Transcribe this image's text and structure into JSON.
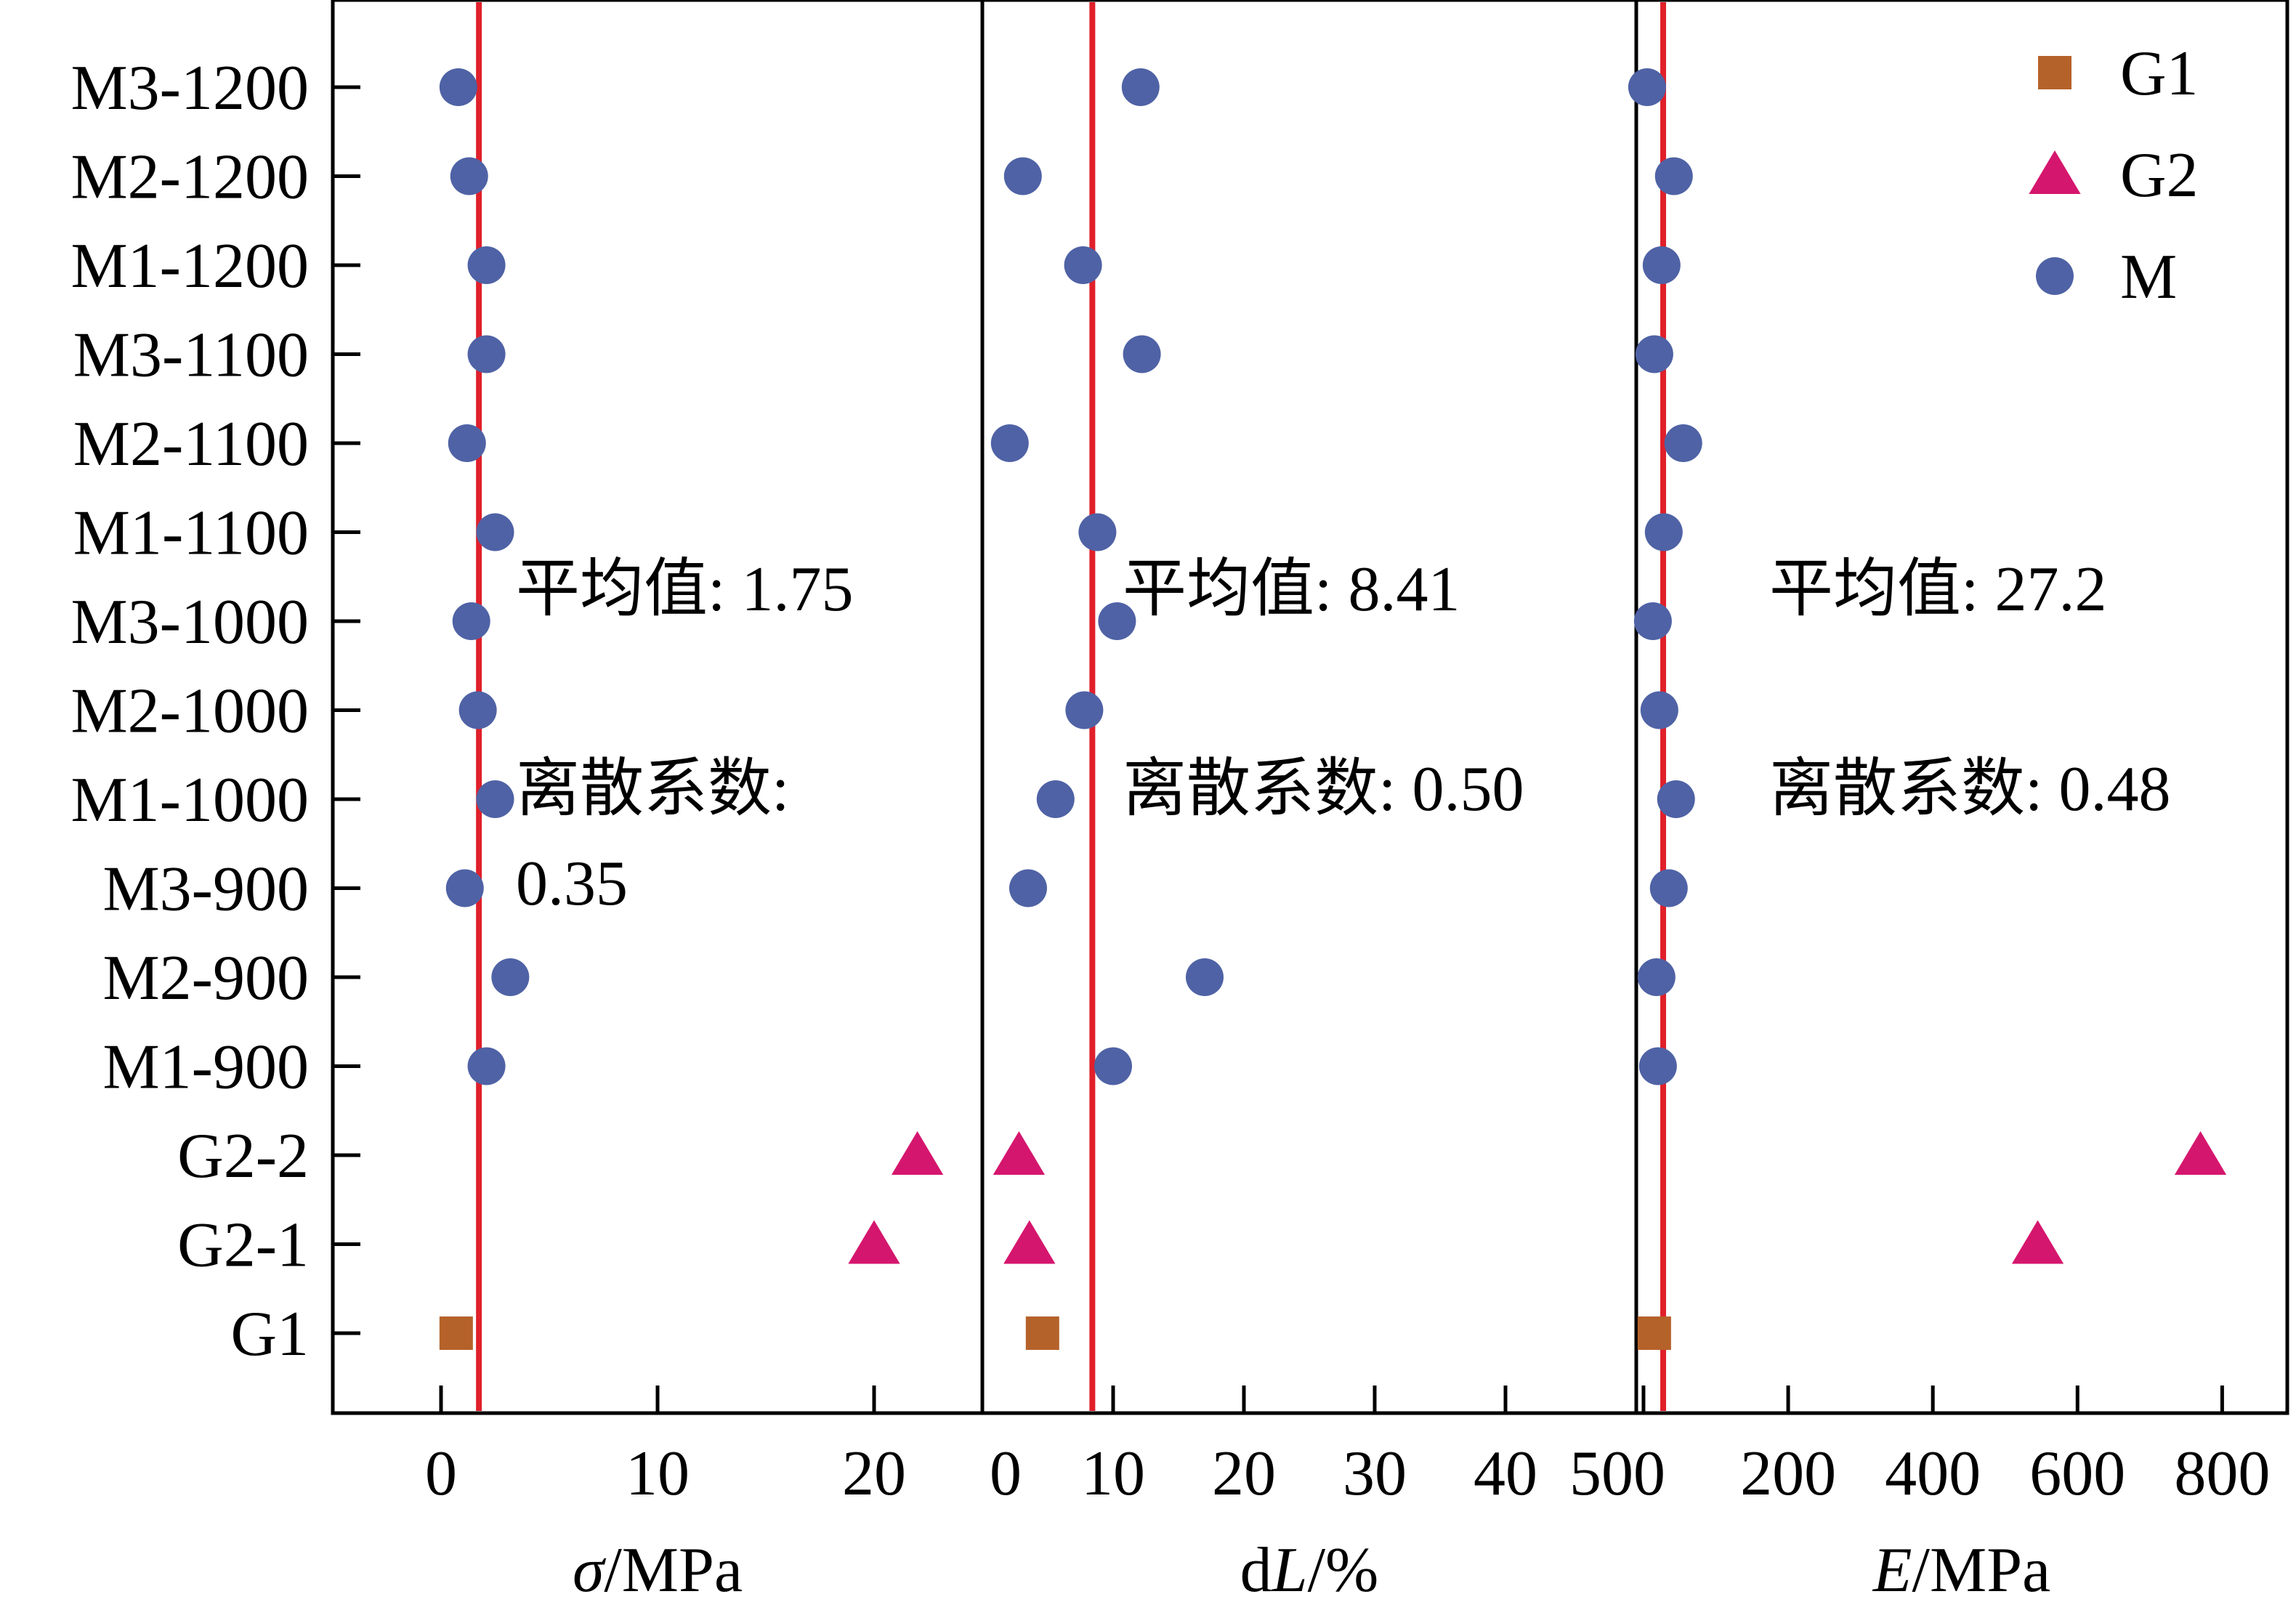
{
  "chart_data": {
    "type": "scatter",
    "categories": [
      "G1",
      "G2-1",
      "G2-2",
      "M1-900",
      "M2-900",
      "M3-900",
      "M1-1000",
      "M2-1000",
      "M3-1000",
      "M1-1100",
      "M2-1100",
      "M3-1100",
      "M1-1200",
      "M2-1200",
      "M3-1200"
    ],
    "series_groups": {
      "G1": [
        "G1"
      ],
      "G2": [
        "G2-1",
        "G2-2"
      ],
      "M": [
        "M1-900",
        "M2-900",
        "M3-900",
        "M1-1000",
        "M2-1000",
        "M3-1000",
        "M1-1100",
        "M2-1100",
        "M3-1100",
        "M1-1200",
        "M2-1200",
        "M3-1200"
      ]
    },
    "legend": {
      "placement": "top-right",
      "entries": [
        {
          "name": "G1",
          "marker": "square",
          "color": "#b5622a"
        },
        {
          "name": "G2",
          "marker": "triangle",
          "color": "#d5166e"
        },
        {
          "name": "M",
          "marker": "circle",
          "color": "#4f62a5"
        }
      ]
    },
    "panels": [
      {
        "key": "sigma",
        "xlabel_prefix": "σ",
        "xlabel_suffix": "/MPa",
        "xlim": [
          -5,
          25
        ],
        "xticks": [
          0,
          10,
          20
        ],
        "mean": 1.75,
        "annotation_mean": "平均值: 1.75",
        "annotation_cv_lines": [
          "离散系数:",
          "0.35"
        ],
        "values": {
          "G1": 0.7,
          "G2-1": 20.0,
          "G2-2": 22.0,
          "M1-900": 2.1,
          "M2-900": 3.2,
          "M3-900": 1.1,
          "M1-1000": 2.5,
          "M2-1000": 1.7,
          "M3-1000": 1.4,
          "M1-1100": 2.5,
          "M2-1100": 1.2,
          "M3-1100": 2.1,
          "M1-1200": 2.1,
          "M2-1200": 1.3,
          "M3-1200": 0.8
        }
      },
      {
        "key": "dL",
        "xlabel_prefix": "d",
        "xlabel_italic": "L",
        "xlabel_suffix": "/%",
        "xlim": [
          0,
          50
        ],
        "xticks": [
          0,
          10,
          20,
          30,
          40,
          50
        ],
        "mean": 8.41,
        "annotation_mean": "平均值: 8.41",
        "annotation_cv_lines": [
          "离散系数: 0.50"
        ],
        "values": {
          "G1": 4.6,
          "G2-1": 3.6,
          "G2-2": 2.8,
          "M1-900": 10.0,
          "M2-900": 17.0,
          "M3-900": 3.5,
          "M1-1000": 5.6,
          "M2-1000": 7.8,
          "M3-1000": 10.3,
          "M1-1100": 8.8,
          "M2-1100": 2.1,
          "M3-1100": 12.2,
          "M1-1200": 7.7,
          "M2-1200": 3.1,
          "M3-1200": 12.1
        }
      },
      {
        "key": "E",
        "xlabel_italic": "E",
        "xlabel_suffix": "/MPa",
        "xlim": [
          -10,
          890
        ],
        "xticks": [
          0,
          200,
          400,
          600,
          800
        ],
        "mean": 27.2,
        "annotation_mean": "平均值: 27.2",
        "annotation_cv_lines": [
          "离散系数: 0.48"
        ],
        "values": {
          "G1": 15.0,
          "G2-1": 545.0,
          "G2-2": 770.0,
          "M1-900": 20.0,
          "M2-900": 18.0,
          "M3-900": 35.0,
          "M1-1000": 45.0,
          "M2-1000": 22.0,
          "M3-1000": 13.0,
          "M1-1100": 28.0,
          "M2-1100": 55.0,
          "M3-1100": 15.0,
          "M1-1200": 25.0,
          "M2-1200": 42.0,
          "M3-1200": 5.0
        }
      }
    ]
  }
}
